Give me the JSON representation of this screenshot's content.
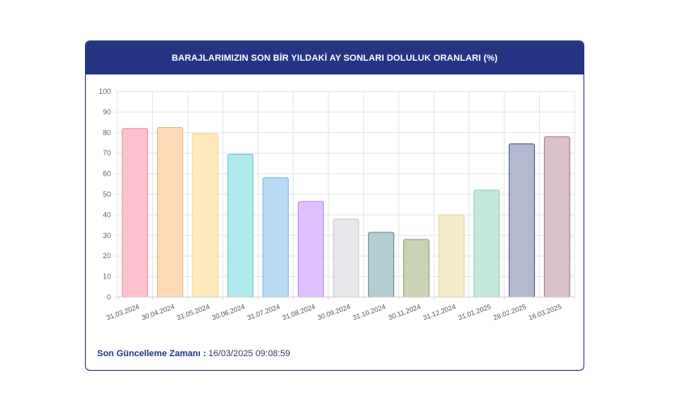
{
  "header": {
    "title": "BARAJLARIMIZIN SON BİR YILDAKİ AY SONLARI DOLULUK ORANLARI (%)"
  },
  "footer": {
    "label": "Son Güncelleme Zamanı :",
    "value": " 16/03/2025 09:08:59"
  },
  "chart_data": {
    "type": "bar",
    "title": "BARAJLARIMIZIN SON BİR YILDAKİ AY SONLARI DOLULUK ORANLARI (%)",
    "xlabel": "",
    "ylabel": "",
    "ylim": [
      0,
      100
    ],
    "yticks": [
      0,
      10,
      20,
      30,
      40,
      50,
      60,
      70,
      80,
      90,
      100
    ],
    "grid": true,
    "legend": "none",
    "categories": [
      "31.03.2024",
      "30.04.2024",
      "31.05.2024",
      "30.06.2024",
      "31.07.2024",
      "31.08.2024",
      "30.09.2024",
      "31.10.2024",
      "30.11.2024",
      "31.12.2024",
      "31.01.2025",
      "28.02.2025",
      "16.03.2025"
    ],
    "values": [
      82,
      82.5,
      79.5,
      69.5,
      58,
      46.5,
      38,
      31.5,
      28,
      40,
      52,
      74.5,
      78
    ],
    "fills": [
      "#ffc0cf",
      "#fed9b5",
      "#ffe8bd",
      "#b2e9eb",
      "#b9dbf6",
      "#ddc0fd",
      "#e6e7ea",
      "#b3cdd1",
      "#cad4b5",
      "#f5ebcb",
      "#c6e8dd",
      "#b2b9d1",
      "#dbc1c8"
    ],
    "strokes": [
      "#f08aa3",
      "#f7b27a",
      "#f5d27c",
      "#5fcfd3",
      "#74b5ea",
      "#b88af7",
      "#c7c9ce",
      "#5f8a91",
      "#8a9a62",
      "#e9d494",
      "#8fcfb8",
      "#4a5579",
      "#a67583"
    ]
  }
}
